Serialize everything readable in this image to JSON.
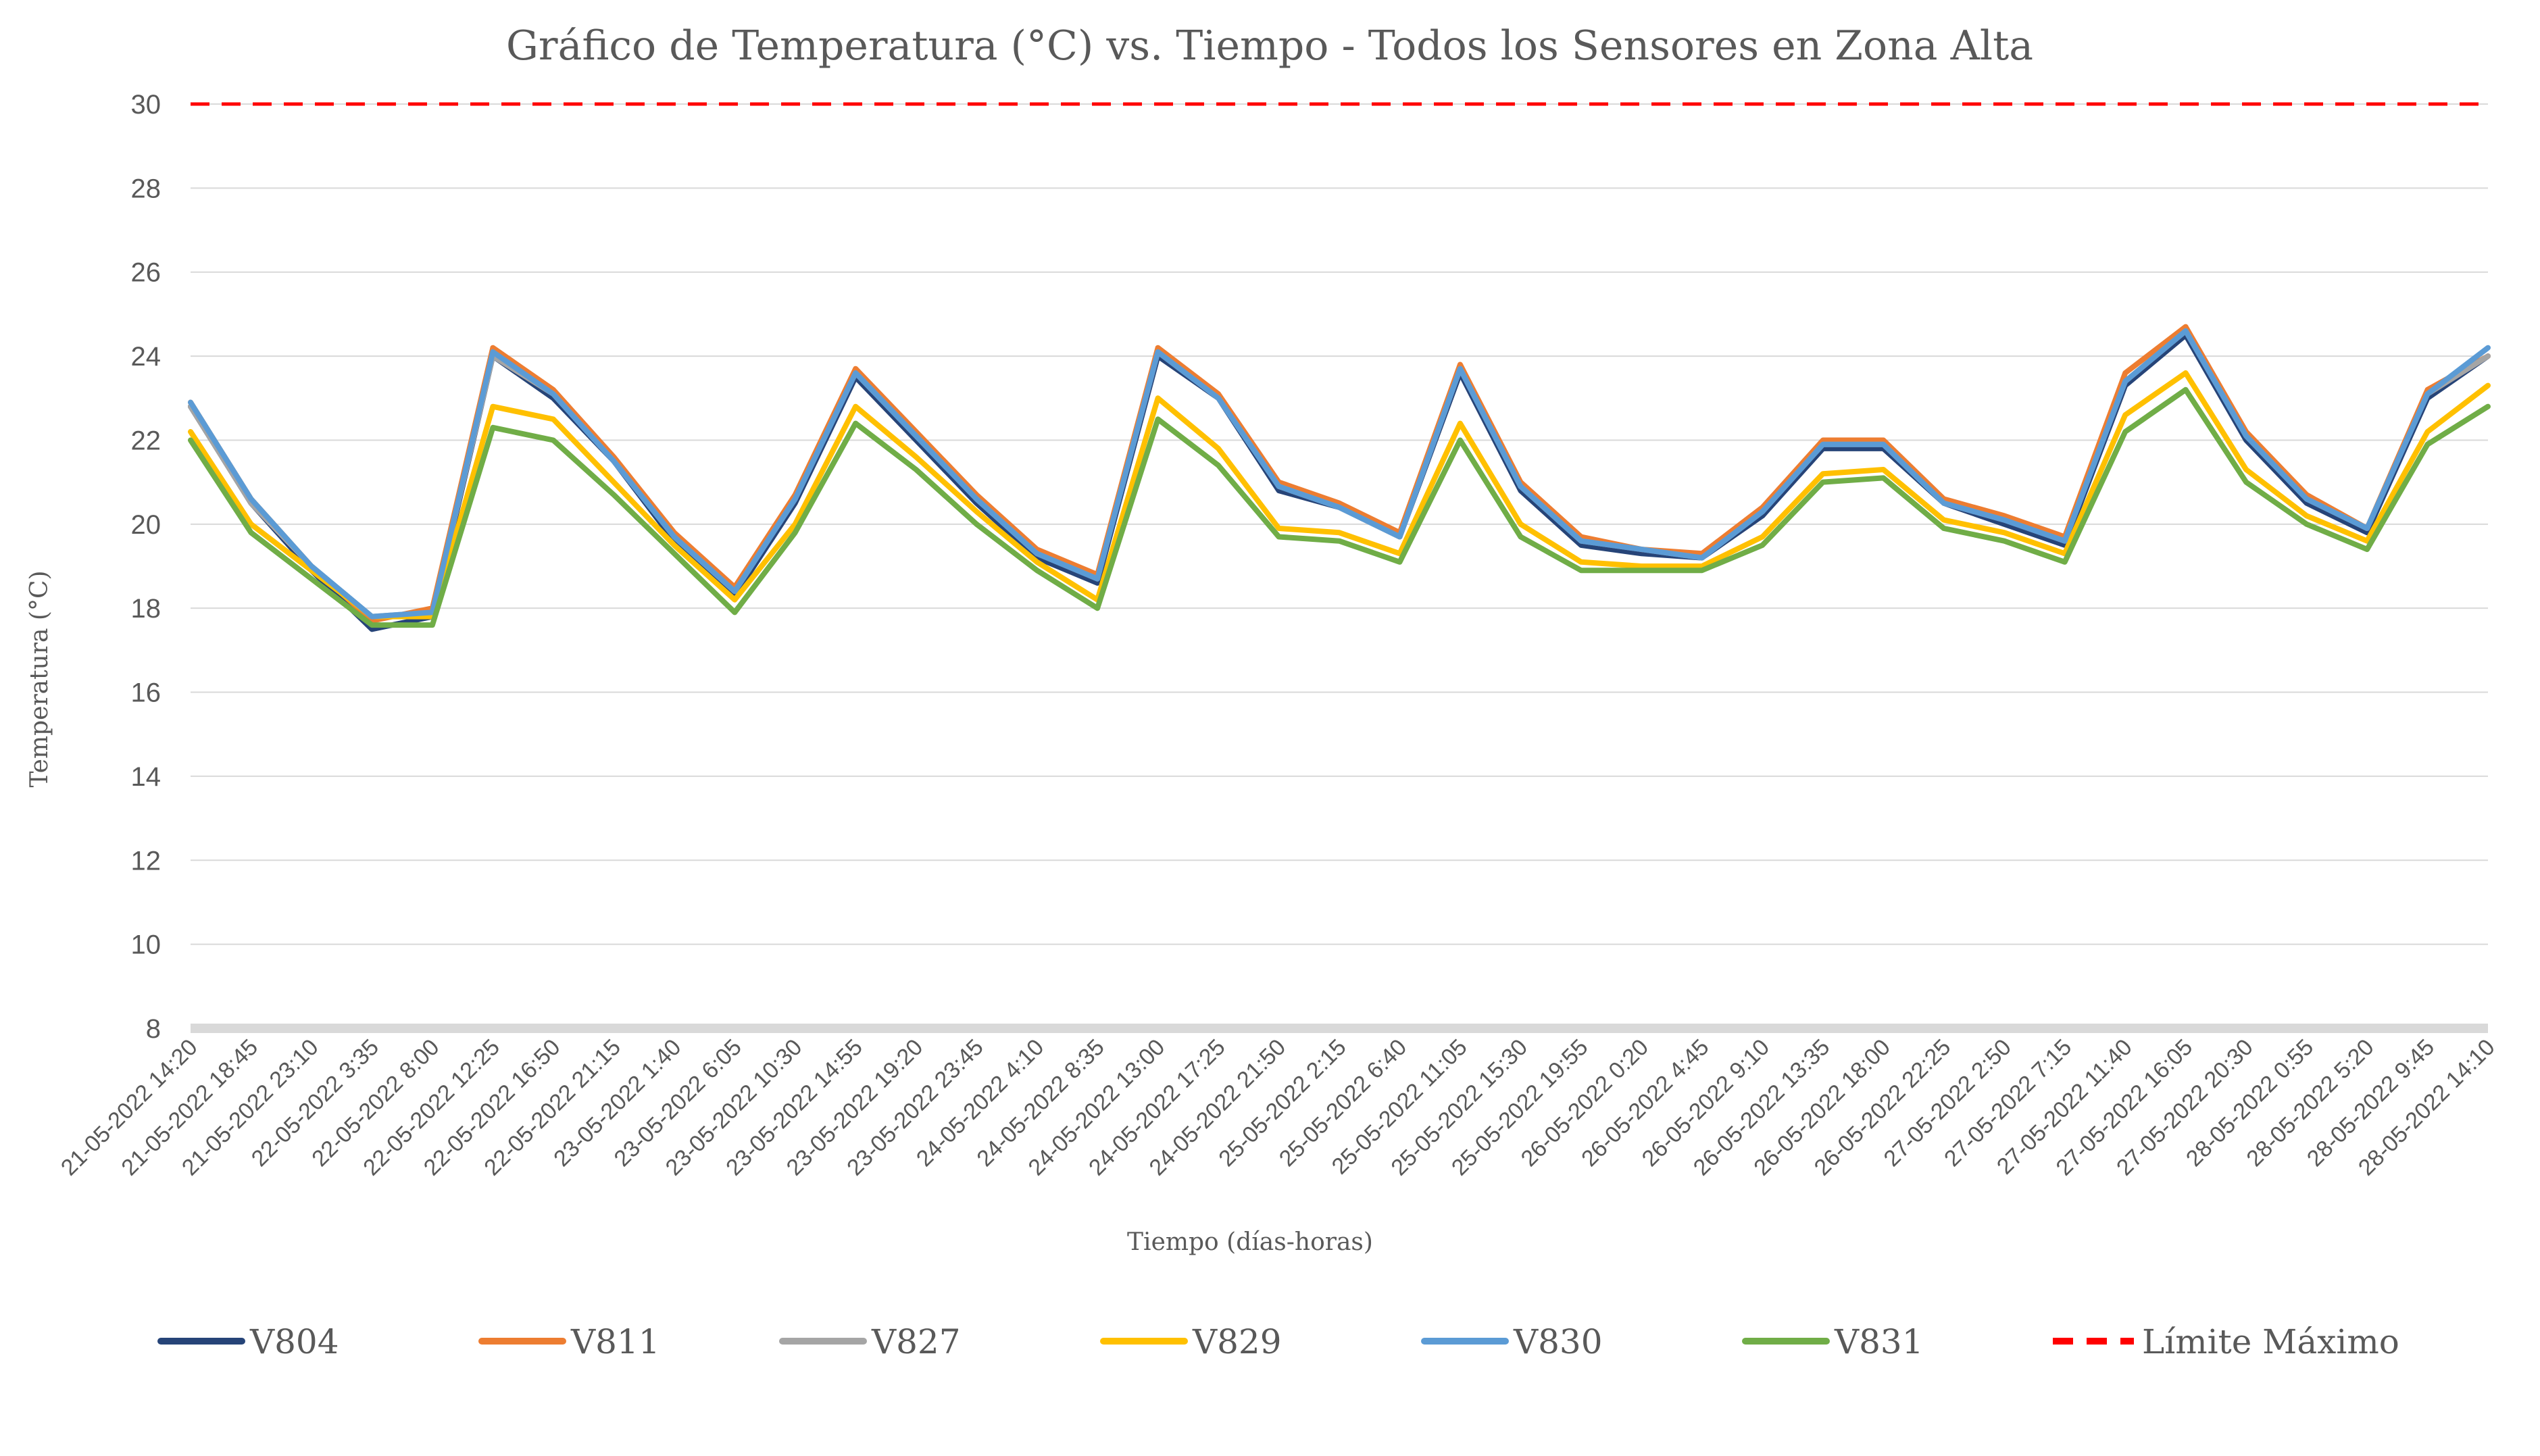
{
  "chart_data": {
    "type": "line",
    "title": "Gráfico de Temperatura (°C) vs. Tiempo - Todos los Sensores en Zona Alta",
    "xlabel": "Tiempo (días-horas)",
    "ylabel": "Temperatura (°C)",
    "ylim": [
      8,
      30
    ],
    "yticks": [
      "8",
      "10",
      "12",
      "14",
      "16",
      "18",
      "20",
      "22",
      "24",
      "26",
      "28",
      "30"
    ],
    "grid": true,
    "legend_position": "bottom",
    "categories": [
      "21-05-2022 14:20",
      "21-05-2022 18:45",
      "21-05-2022 23:10",
      "22-05-2022 3:35",
      "22-05-2022 8:00",
      "22-05-2022 12:25",
      "22-05-2022 16:50",
      "22-05-2022 21:15",
      "23-05-2022 1:40",
      "23-05-2022 6:05",
      "23-05-2022 10:30",
      "23-05-2022 14:55",
      "23-05-2022 19:20",
      "23-05-2022 23:45",
      "24-05-2022 4:10",
      "24-05-2022 8:35",
      "24-05-2022 13:00",
      "24-05-2022 17:25",
      "24-05-2022 21:50",
      "25-05-2022 2:15",
      "25-05-2022 6:40",
      "25-05-2022 11:05",
      "25-05-2022 15:30",
      "25-05-2022 19:55",
      "26-05-2022 0:20",
      "26-05-2022 4:45",
      "26-05-2022 9:10",
      "26-05-2022 13:35",
      "26-05-2022 18:00",
      "26-05-2022 22:25",
      "27-05-2022 2:50",
      "27-05-2022 7:15",
      "27-05-2022 11:40",
      "27-05-2022 16:05",
      "27-05-2022 20:30",
      "28-05-2022 0:55",
      "28-05-2022 5:20",
      "28-05-2022 9:45",
      "28-05-2022 14:10"
    ],
    "series": [
      {
        "name": "V804",
        "color": "#264478",
        "values": [
          22.8,
          20.5,
          18.9,
          17.5,
          17.8,
          24.0,
          23.0,
          21.5,
          19.6,
          18.3,
          20.5,
          23.5,
          22.0,
          20.5,
          19.2,
          18.6,
          24.0,
          23.0,
          20.8,
          20.4,
          19.7,
          23.6,
          20.8,
          19.5,
          19.3,
          19.2,
          20.2,
          21.8,
          21.8,
          20.5,
          20.0,
          19.5,
          23.3,
          24.5,
          22.0,
          20.5,
          19.8,
          23.0,
          24.0
        ]
      },
      {
        "name": "V811",
        "color": "#ED7D31",
        "values": [
          22.9,
          20.6,
          19.0,
          17.7,
          18.0,
          24.2,
          23.2,
          21.6,
          19.8,
          18.5,
          20.7,
          23.7,
          22.2,
          20.7,
          19.4,
          18.8,
          24.2,
          23.1,
          21.0,
          20.5,
          19.8,
          23.8,
          21.0,
          19.7,
          19.4,
          19.3,
          20.4,
          22.0,
          22.0,
          20.6,
          20.2,
          19.7,
          23.6,
          24.7,
          22.2,
          20.7,
          19.9,
          23.2,
          24.0
        ]
      },
      {
        "name": "V827",
        "color": "#A5A5A5",
        "values": [
          22.8,
          20.5,
          19.0,
          17.8,
          17.9,
          24.0,
          23.1,
          21.5,
          19.7,
          18.4,
          20.6,
          23.6,
          22.1,
          20.6,
          19.3,
          18.7,
          24.1,
          23.0,
          20.9,
          20.4,
          19.7,
          23.7,
          20.9,
          19.6,
          19.4,
          19.2,
          20.3,
          21.9,
          21.9,
          20.5,
          20.1,
          19.6,
          23.4,
          24.6,
          22.1,
          20.6,
          19.9,
          23.1,
          24.0
        ]
      },
      {
        "name": "V829",
        "color": "#FFC000",
        "values": [
          22.2,
          20.0,
          18.9,
          17.8,
          17.8,
          22.8,
          22.5,
          21.0,
          19.5,
          18.2,
          20.0,
          22.8,
          21.6,
          20.3,
          19.1,
          18.2,
          23.0,
          21.8,
          19.9,
          19.8,
          19.3,
          22.4,
          20.0,
          19.1,
          19.0,
          19.0,
          19.7,
          21.2,
          21.3,
          20.1,
          19.8,
          19.3,
          22.6,
          23.6,
          21.3,
          20.2,
          19.6,
          22.2,
          23.3
        ]
      },
      {
        "name": "V830",
        "color": "#5B9BD5",
        "values": [
          22.9,
          20.6,
          19.0,
          17.8,
          17.9,
          24.1,
          23.1,
          21.5,
          19.7,
          18.4,
          20.6,
          23.6,
          22.1,
          20.6,
          19.3,
          18.7,
          24.1,
          23.0,
          20.9,
          20.4,
          19.7,
          23.7,
          20.9,
          19.6,
          19.4,
          19.2,
          20.3,
          21.9,
          21.9,
          20.5,
          20.1,
          19.6,
          23.4,
          24.6,
          22.1,
          20.6,
          19.9,
          23.1,
          24.2
        ]
      },
      {
        "name": "V831",
        "color": "#70AD47",
        "values": [
          22.0,
          19.8,
          18.7,
          17.6,
          17.6,
          22.3,
          22.0,
          20.7,
          19.3,
          17.9,
          19.8,
          22.4,
          21.3,
          20.0,
          18.9,
          18.0,
          22.5,
          21.4,
          19.7,
          19.6,
          19.1,
          22.0,
          19.7,
          18.9,
          18.9,
          18.9,
          19.5,
          21.0,
          21.1,
          19.9,
          19.6,
          19.1,
          22.2,
          23.2,
          21.0,
          20.0,
          19.4,
          21.9,
          22.8
        ]
      },
      {
        "name": "Límite Máximo",
        "color": "#FF0000",
        "dashed": true,
        "values": [
          30,
          30,
          30,
          30,
          30,
          30,
          30,
          30,
          30,
          30,
          30,
          30,
          30,
          30,
          30,
          30,
          30,
          30,
          30,
          30,
          30,
          30,
          30,
          30,
          30,
          30,
          30,
          30,
          30,
          30,
          30,
          30,
          30,
          30,
          30,
          30,
          30,
          30,
          30
        ]
      }
    ]
  }
}
